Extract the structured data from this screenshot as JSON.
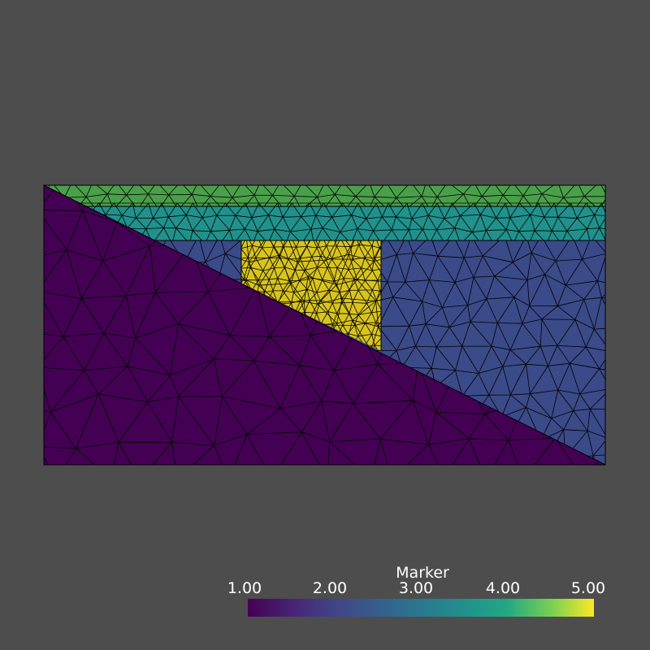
{
  "colorbar": {
    "title": "Marker",
    "ticks": [
      "1.00",
      "2.00",
      "3.00",
      "4.00",
      "5.00"
    ],
    "range": [
      1,
      5
    ],
    "colormap": "viridis"
  },
  "regions": [
    {
      "marker": 1,
      "color": "#440154"
    },
    {
      "marker": 2,
      "color": "#3b4a88"
    },
    {
      "marker": 3,
      "color": "#21918c"
    },
    {
      "marker": 4,
      "color": "#4aa04a"
    },
    {
      "marker": 5,
      "color": "#d8c41d"
    }
  ],
  "colors": {
    "background": "#4d4d4d",
    "edges": "#000000",
    "text": "#ffffff"
  }
}
